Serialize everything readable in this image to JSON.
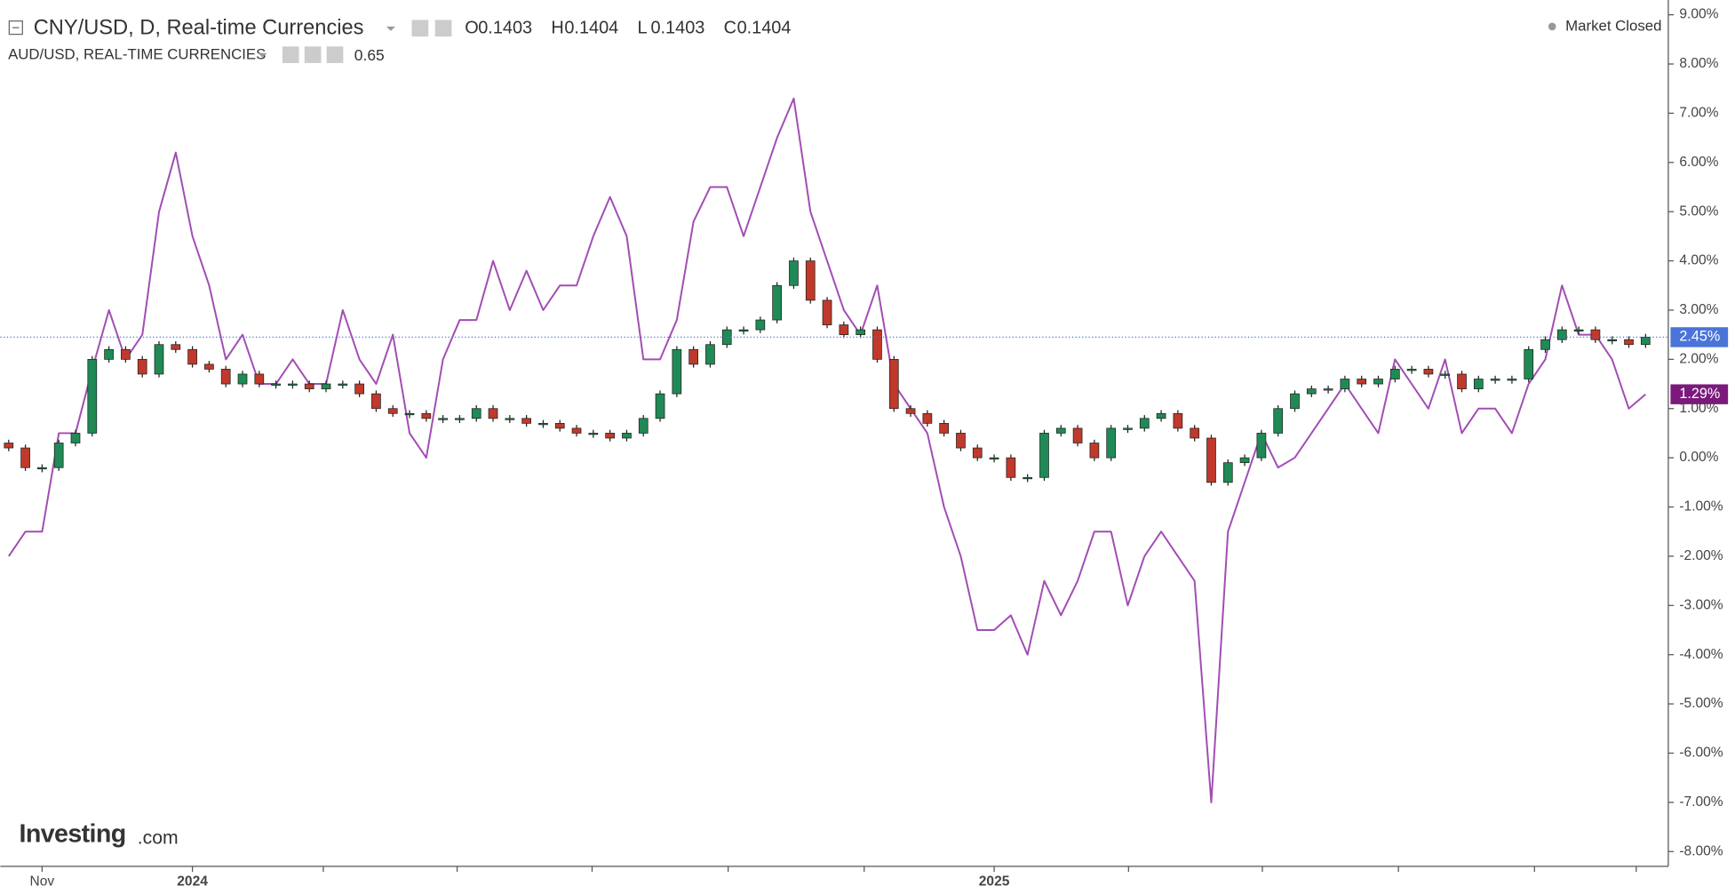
{
  "chart_data": {
    "type": "candlestick",
    "header": {
      "ohlc": [
        {
          "label": "O",
          "value": "0.1403"
        },
        {
          "label": "H",
          "value": "0.1404"
        },
        {
          "label": "L",
          "value": "0.1403"
        },
        {
          "label": "C",
          "value": "0.1404"
        }
      ],
      "overlay_value": "0.65",
      "status": "Market Closed",
      "logo": "Investing",
      "logo_suffix": ".com"
    },
    "categories": [
      null,
      null,
      "Nov",
      null,
      null,
      null,
      null,
      null,
      null,
      null,
      null,
      "2024",
      null,
      null,
      null,
      null,
      null,
      null,
      null,
      null,
      null,
      null,
      null,
      null,
      null,
      null,
      null,
      null,
      null,
      null,
      null,
      null,
      null,
      null,
      null,
      null,
      null,
      null,
      null,
      null,
      null,
      null,
      null,
      null,
      null,
      null,
      null,
      null,
      null,
      null,
      null,
      null,
      null,
      null,
      null,
      null,
      null,
      null,
      null,
      "2025",
      null,
      null,
      null,
      null,
      null,
      null,
      null,
      null,
      null,
      null,
      null,
      null,
      null,
      null,
      null,
      null,
      null,
      null,
      null,
      null,
      null,
      null,
      null,
      null,
      null,
      null,
      null,
      null,
      null,
      null,
      null,
      null,
      null,
      null,
      null,
      null,
      null,
      null,
      null
    ],
    "ylim": [
      -8.3,
      9.3
    ],
    "yticks": [
      {
        "value": 9,
        "label": "9.00%"
      },
      {
        "value": 8,
        "label": "8.00%"
      },
      {
        "value": 7,
        "label": "7.00%"
      },
      {
        "value": 6,
        "label": "6.00%"
      },
      {
        "value": 5,
        "label": "5.00%"
      },
      {
        "value": 4,
        "label": "4.00%"
      },
      {
        "value": 3,
        "label": "3.00%"
      },
      {
        "value": 2,
        "label": "2.00%"
      },
      {
        "value": 1,
        "label": "1.00%"
      },
      {
        "value": 0,
        "label": "0.00%"
      },
      {
        "value": -1,
        "label": "-1.00%"
      },
      {
        "value": -2,
        "label": "-2.00%"
      },
      {
        "value": -3,
        "label": "-3.00%"
      },
      {
        "value": -4,
        "label": "-4.00%"
      },
      {
        "value": -5,
        "label": "-5.00%"
      },
      {
        "value": -6,
        "label": "-6.00%"
      },
      {
        "value": -7,
        "label": "-7.00%"
      },
      {
        "value": -8,
        "label": "-8.00%"
      }
    ],
    "series": [
      {
        "name": "CNY/USD, D, Real-time Currencies",
        "type": "candlestick",
        "up_color": "#1f8a55",
        "down_color": "#c0392b",
        "price_line_color": "#4a74d9",
        "last_label": "2.45%",
        "open": [
          0.3,
          0.2,
          -0.2,
          -0.2,
          0.3,
          0.5,
          2.0,
          2.2,
          2.0,
          1.7,
          2.3,
          2.2,
          1.9,
          1.8,
          1.5,
          1.7,
          1.5,
          1.5,
          1.5,
          1.4,
          1.5,
          1.5,
          1.3,
          1.0,
          0.9,
          0.9,
          0.8,
          0.8,
          0.8,
          1.0,
          0.8,
          0.8,
          0.7,
          0.7,
          0.6,
          0.5,
          0.5,
          0.4,
          0.5,
          0.8,
          1.3,
          2.2,
          1.9,
          2.3,
          2.6,
          2.6,
          2.8,
          3.5,
          4.0,
          3.2,
          2.7,
          2.5,
          2.6,
          2.0,
          1.0,
          0.9,
          0.7,
          0.5,
          0.2,
          0.0,
          0.0,
          -0.4,
          -0.4,
          0.5,
          0.6,
          0.3,
          0.0,
          0.6,
          0.6,
          0.8,
          0.9,
          0.6,
          0.4,
          -0.5,
          -0.1,
          0.0,
          0.5,
          1.0,
          1.3,
          1.4,
          1.4,
          1.6,
          1.5,
          1.6,
          1.8,
          1.8,
          1.7,
          1.7,
          1.4,
          1.6,
          1.6,
          1.6,
          2.2,
          2.4,
          2.6,
          2.6,
          2.4,
          2.4,
          2.3
        ],
        "close": [
          0.2,
          -0.2,
          -0.2,
          0.3,
          0.5,
          2.0,
          2.2,
          2.0,
          1.7,
          2.3,
          2.2,
          1.9,
          1.8,
          1.5,
          1.7,
          1.5,
          1.5,
          1.5,
          1.4,
          1.5,
          1.5,
          1.3,
          1.0,
          0.9,
          0.9,
          0.8,
          0.8,
          0.8,
          1.0,
          0.8,
          0.8,
          0.7,
          0.7,
          0.6,
          0.5,
          0.5,
          0.4,
          0.5,
          0.8,
          1.3,
          2.2,
          1.9,
          2.3,
          2.6,
          2.6,
          2.8,
          3.5,
          4.0,
          3.2,
          2.7,
          2.5,
          2.6,
          2.0,
          1.0,
          0.9,
          0.7,
          0.5,
          0.2,
          0.0,
          0.0,
          -0.4,
          -0.4,
          0.5,
          0.6,
          0.3,
          0.0,
          0.6,
          0.6,
          0.8,
          0.9,
          0.6,
          0.4,
          -0.5,
          -0.1,
          0.0,
          0.5,
          1.0,
          1.3,
          1.4,
          1.4,
          1.6,
          1.5,
          1.6,
          1.8,
          1.8,
          1.7,
          1.7,
          1.4,
          1.6,
          1.6,
          1.6,
          2.2,
          2.4,
          2.6,
          2.6,
          2.4,
          2.4,
          2.3,
          2.45
        ]
      },
      {
        "name": "AUD/USD, REAL-TIME CURRENCIES",
        "type": "line",
        "color": "#a24db3",
        "last_label": "1.29%",
        "values": [
          -2.0,
          -1.5,
          -1.5,
          0.5,
          0.5,
          1.8,
          3.0,
          2.0,
          2.5,
          5.0,
          6.2,
          4.5,
          3.5,
          2.0,
          2.5,
          1.5,
          1.5,
          2.0,
          1.5,
          1.5,
          3.0,
          2.0,
          1.5,
          2.5,
          0.5,
          0.0,
          2.0,
          2.8,
          2.8,
          4.0,
          3.0,
          3.8,
          3.0,
          3.5,
          3.5,
          4.5,
          5.3,
          4.5,
          2.0,
          2.0,
          2.8,
          4.8,
          5.5,
          5.5,
          4.5,
          5.5,
          6.5,
          7.3,
          5.0,
          4.0,
          3.0,
          2.5,
          3.5,
          1.5,
          1.0,
          0.5,
          -1.0,
          -2.0,
          -3.5,
          -3.5,
          -3.2,
          -4.0,
          -2.5,
          -3.2,
          -2.5,
          -1.5,
          -1.5,
          -3.0,
          -2.0,
          -1.5,
          -2.0,
          -2.5,
          -7.0,
          -1.5,
          -0.5,
          0.5,
          -0.2,
          0.0,
          0.5,
          1.0,
          1.5,
          1.0,
          0.5,
          2.0,
          1.5,
          1.0,
          2.0,
          0.5,
          1.0,
          1.0,
          0.5,
          1.5,
          2.0,
          3.5,
          2.5,
          2.5,
          2.0,
          1.0,
          1.29
        ]
      }
    ]
  }
}
